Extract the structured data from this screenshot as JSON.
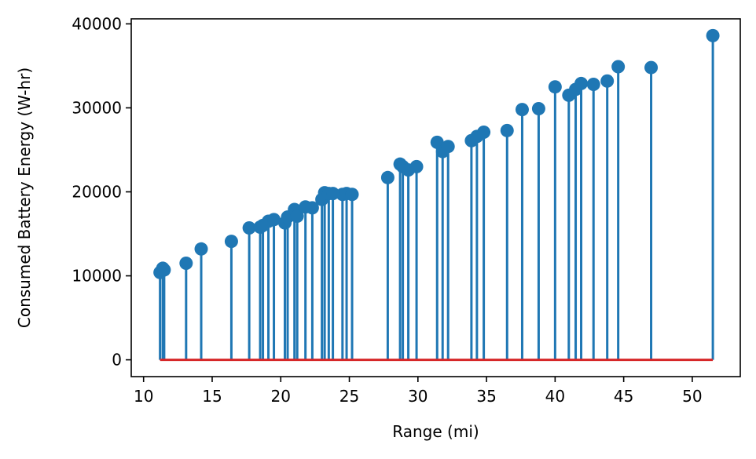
{
  "chart_data": {
    "type": "stem",
    "title": "",
    "xlabel": "Range (mi)",
    "ylabel": "Consumed Battery Energy (W-hr)",
    "xlim": [
      9.1,
      53.5
    ],
    "ylim": [
      -2000,
      40600
    ],
    "xticks": [
      10,
      15,
      20,
      25,
      30,
      35,
      40,
      45,
      50
    ],
    "yticks": [
      0,
      10000,
      20000,
      30000,
      40000
    ],
    "grid": false,
    "stem_color": "#1f77b4",
    "baseline_color": "#d62728",
    "baseline_value": 0,
    "x": [
      11.2,
      11.4,
      11.5,
      13.1,
      14.2,
      16.4,
      17.7,
      18.5,
      18.7,
      19.1,
      19.5,
      20.3,
      20.5,
      21.0,
      21.2,
      21.8,
      22.3,
      23.0,
      23.2,
      23.5,
      23.8,
      24.5,
      24.8,
      25.2,
      27.8,
      28.7,
      28.9,
      29.3,
      29.9,
      31.4,
      31.8,
      32.2,
      33.9,
      34.3,
      34.8,
      36.5,
      37.6,
      38.8,
      40.0,
      41.0,
      41.5,
      41.9,
      42.8,
      43.8,
      44.6,
      47.0,
      51.5
    ],
    "y": [
      10400,
      10900,
      10700,
      11500,
      13200,
      14100,
      15700,
      15800,
      16000,
      16500,
      16700,
      16300,
      17000,
      17900,
      17100,
      18200,
      18100,
      19100,
      19900,
      19800,
      19800,
      19700,
      19800,
      19700,
      21700,
      23300,
      23000,
      22600,
      23000,
      25900,
      24800,
      25400,
      26100,
      26600,
      27100,
      27300,
      29800,
      29900,
      32500,
      31500,
      32200,
      32900,
      32800,
      33200,
      34900,
      34800,
      38600
    ]
  }
}
